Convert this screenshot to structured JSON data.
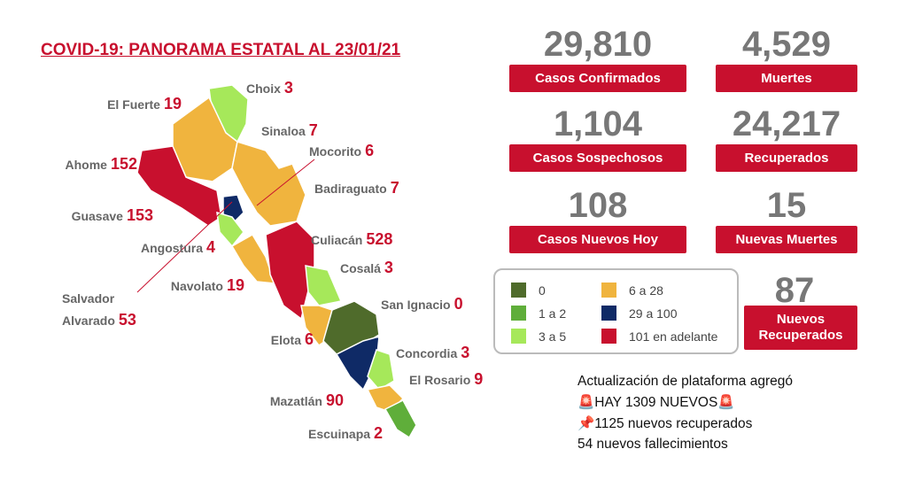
{
  "header": {
    "title": "COVID-19: PANORAMA ESTATAL AL 23/01/21"
  },
  "stats": [
    {
      "value": "29,810",
      "label": "Casos Confirmados"
    },
    {
      "value": "4,529",
      "label": "Muertes"
    },
    {
      "value": "1,104",
      "label": "Casos Sospechosos"
    },
    {
      "value": "24,217",
      "label": "Recuperados"
    },
    {
      "value": "108",
      "label": "Casos Nuevos Hoy"
    },
    {
      "value": "15",
      "label": "Nuevas Muertes"
    },
    {
      "value": "87",
      "label": "Nuevos Recuperados"
    }
  ],
  "municipalities": [
    {
      "name": "El Fuerte",
      "cases": "19"
    },
    {
      "name": "Choix",
      "cases": "3"
    },
    {
      "name": "Sinaloa",
      "cases": "7"
    },
    {
      "name": "Mocorito",
      "cases": "6"
    },
    {
      "name": "Ahome",
      "cases": "152"
    },
    {
      "name": "Badiraguato",
      "cases": "7"
    },
    {
      "name": "Guasave",
      "cases": "153"
    },
    {
      "name": "Culiacán",
      "cases": "528"
    },
    {
      "name": "Angostura",
      "cases": "4"
    },
    {
      "name": "Cosalá",
      "cases": "3"
    },
    {
      "name": "Navolato",
      "cases": "19"
    },
    {
      "name": "Salvador Alvarado",
      "cases": "53"
    },
    {
      "name": "San Ignacio",
      "cases": "0"
    },
    {
      "name": "Elota",
      "cases": "6"
    },
    {
      "name": "Concordia",
      "cases": "3"
    },
    {
      "name": "El Rosario",
      "cases": "9"
    },
    {
      "name": "Mazatlán",
      "cases": "90"
    },
    {
      "name": "Escuinapa",
      "cases": "2"
    }
  ],
  "legend": [
    {
      "label": "0",
      "color": "#4f6b2b"
    },
    {
      "label": "1 a 2",
      "color": "#5fae3a"
    },
    {
      "label": "3 a 5",
      "color": "#a6e85a"
    },
    {
      "label": "6 a 28",
      "color": "#f0b43e"
    },
    {
      "label": "29 a 100",
      "color": "#0f2a66"
    },
    {
      "label": "101 en adelante",
      "color": "#c8102e"
    }
  ],
  "update": {
    "heading": "Actualización de plataforma agregó",
    "lines": [
      "🚨HAY 1309 NUEVOS🚨",
      "📌1125 nuevos recuperados",
      "54 nuevos fallecimientos"
    ]
  }
}
